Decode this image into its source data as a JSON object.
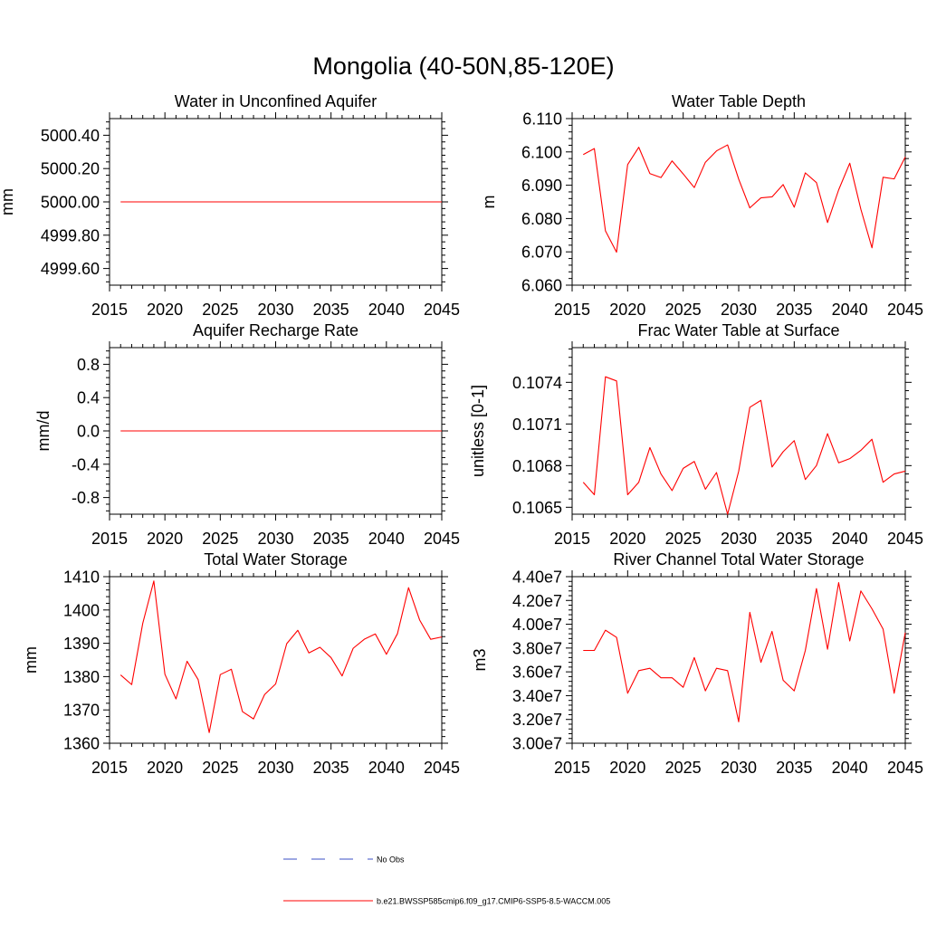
{
  "title": "Mongolia (40-50N,85-120E)",
  "colors": {
    "model": "#ff0000",
    "obs": "#3b4fc4",
    "axis": "#000000"
  },
  "legend": {
    "obs_label": "No Obs",
    "model_label": "b.e21.BWSSP585cmip6.f09_g17.CMIP6-SSP5-8.5-WACCM.005"
  },
  "years": [
    2016,
    2017,
    2018,
    2019,
    2020,
    2021,
    2022,
    2023,
    2024,
    2025,
    2026,
    2027,
    2028,
    2029,
    2030,
    2031,
    2032,
    2033,
    2034,
    2035,
    2036,
    2037,
    2038,
    2039,
    2040,
    2041,
    2042,
    2043,
    2044,
    2045
  ],
  "chart_data": [
    {
      "type": "line",
      "title": "Water in Unconfined Aquifer",
      "ylabel": "mm",
      "xlim": [
        2015,
        2045
      ],
      "xticks": [
        2015,
        2020,
        2025,
        2030,
        2035,
        2040,
        2045
      ],
      "xtick_labels": [
        "2015",
        "2020",
        "2025",
        "2030",
        "2035",
        "2040",
        "2045"
      ],
      "ylim": [
        4999.5,
        5000.5
      ],
      "yticks": [
        4999.6,
        4999.8,
        5000.0,
        5000.2,
        5000.4
      ],
      "ytick_labels": [
        "4999.60",
        "4999.80",
        "5000.00",
        "5000.20",
        "5000.40"
      ],
      "values": [
        5000,
        5000,
        5000,
        5000,
        5000,
        5000,
        5000,
        5000,
        5000,
        5000,
        5000,
        5000,
        5000,
        5000,
        5000,
        5000,
        5000,
        5000,
        5000,
        5000,
        5000,
        5000,
        5000,
        5000,
        5000,
        5000,
        5000,
        5000,
        5000,
        5000
      ]
    },
    {
      "type": "line",
      "title": "Water Table Depth",
      "ylabel": "m",
      "xlim": [
        2015,
        2045
      ],
      "xticks": [
        2015,
        2020,
        2025,
        2030,
        2035,
        2040,
        2045
      ],
      "xtick_labels": [
        "2015",
        "2020",
        "2025",
        "2030",
        "2035",
        "2040",
        "2045"
      ],
      "ylim": [
        6.06,
        6.11
      ],
      "yticks": [
        6.06,
        6.07,
        6.08,
        6.09,
        6.1,
        6.11
      ],
      "ytick_labels": [
        "6.060",
        "6.070",
        "6.080",
        "6.090",
        "6.100",
        "6.110"
      ],
      "values": [
        6.0992,
        6.101,
        6.0763,
        6.0699,
        6.0962,
        6.1014,
        6.0935,
        6.0923,
        6.0973,
        6.0934,
        6.0893,
        6.0969,
        6.1003,
        6.1021,
        6.0918,
        6.0832,
        6.0862,
        6.0865,
        6.0902,
        6.0834,
        6.0937,
        6.0908,
        6.0788,
        6.0886,
        6.0966,
        6.0828,
        6.0712,
        6.0924,
        6.0919,
        6.0985
      ]
    },
    {
      "type": "line",
      "title": "Aquifer Recharge Rate",
      "ylabel": "mm/d",
      "xlim": [
        2015,
        2045
      ],
      "xticks": [
        2015,
        2020,
        2025,
        2030,
        2035,
        2040,
        2045
      ],
      "xtick_labels": [
        "2015",
        "2020",
        "2025",
        "2030",
        "2035",
        "2040",
        "2045"
      ],
      "ylim": [
        -1.0,
        1.0
      ],
      "yticks": [
        -0.8,
        -0.4,
        0.0,
        0.4,
        0.8
      ],
      "ytick_labels": [
        "-0.8",
        "-0.4",
        "0.0",
        "0.4",
        "0.8"
      ],
      "values": [
        0,
        0,
        0,
        0,
        0,
        0,
        0,
        0,
        0,
        0,
        0,
        0,
        0,
        0,
        0,
        0,
        0,
        0,
        0,
        0,
        0,
        0,
        0,
        0,
        0,
        0,
        0,
        0,
        0,
        0
      ]
    },
    {
      "type": "line",
      "title": "Frac Water Table at Surface",
      "ylabel": "unitless [0-1]",
      "xlim": [
        2015,
        2045
      ],
      "xticks": [
        2015,
        2020,
        2025,
        2030,
        2035,
        2040,
        2045
      ],
      "xtick_labels": [
        "2015",
        "2020",
        "2025",
        "2030",
        "2035",
        "2040",
        "2045"
      ],
      "ylim": [
        0.10645,
        0.10765
      ],
      "yticks": [
        0.1065,
        0.1068,
        0.1071,
        0.1074
      ],
      "ytick_labels": [
        "0.1065",
        "0.1068",
        "0.1071",
        "0.1074"
      ],
      "values": [
        0.10668,
        0.10659,
        0.10744,
        0.10741,
        0.10659,
        0.10668,
        0.10693,
        0.10674,
        0.10662,
        0.10678,
        0.10683,
        0.10663,
        0.10675,
        0.10645,
        0.10676,
        0.10722,
        0.10727,
        0.10679,
        0.1069,
        0.10698,
        0.1067,
        0.1068,
        0.10703,
        0.10682,
        0.10685,
        0.10691,
        0.10699,
        0.10668,
        0.10674,
        0.10676
      ]
    },
    {
      "type": "line",
      "title": "Total Water Storage",
      "ylabel": "mm",
      "xlim": [
        2015,
        2045
      ],
      "xticks": [
        2015,
        2020,
        2025,
        2030,
        2035,
        2040,
        2045
      ],
      "xtick_labels": [
        "2015",
        "2020",
        "2025",
        "2030",
        "2035",
        "2040",
        "2045"
      ],
      "ylim": [
        1360,
        1410
      ],
      "yticks": [
        1360,
        1370,
        1380,
        1390,
        1400,
        1410
      ],
      "ytick_labels": [
        "1360",
        "1370",
        "1380",
        "1390",
        "1400",
        "1410"
      ],
      "values": [
        1380.5,
        1377.6,
        1396.0,
        1408.7,
        1380.7,
        1373.3,
        1384.6,
        1379.1,
        1363.2,
        1380.6,
        1382.2,
        1369.5,
        1367.3,
        1374.6,
        1377.8,
        1389.9,
        1393.9,
        1387.1,
        1388.8,
        1385.7,
        1380.2,
        1388.5,
        1391.2,
        1392.8,
        1386.7,
        1392.9,
        1406.7,
        1397.0,
        1391.2,
        1391.9
      ]
    },
    {
      "type": "line",
      "title": "River Channel Total Water Storage",
      "ylabel": "m3",
      "xlim": [
        2015,
        2045
      ],
      "xticks": [
        2015,
        2020,
        2025,
        2030,
        2035,
        2040,
        2045
      ],
      "xtick_labels": [
        "2015",
        "2020",
        "2025",
        "2030",
        "2035",
        "2040",
        "2045"
      ],
      "ylim": [
        30000000.0,
        44000000.0
      ],
      "yticks": [
        30000000.0,
        32000000.0,
        34000000.0,
        36000000.0,
        38000000.0,
        40000000.0,
        42000000.0,
        44000000.0
      ],
      "ytick_labels": [
        "3.00e7",
        "3.20e7",
        "3.40e7",
        "3.60e7",
        "3.80e7",
        "4.00e7",
        "4.20e7",
        "4.40e7"
      ],
      "values": [
        37800000,
        37800000,
        39500000,
        38900000,
        34200000,
        36100000,
        36300000,
        35500000,
        35500000,
        34700000,
        37200000,
        34400000,
        36300000,
        36100000,
        31800000,
        41000000,
        36800000,
        39400000,
        35300000,
        34400000,
        37800000,
        43000000,
        37900000,
        43500000,
        38600000,
        42800000,
        41300000,
        39600000,
        34200000,
        39300000
      ]
    }
  ]
}
